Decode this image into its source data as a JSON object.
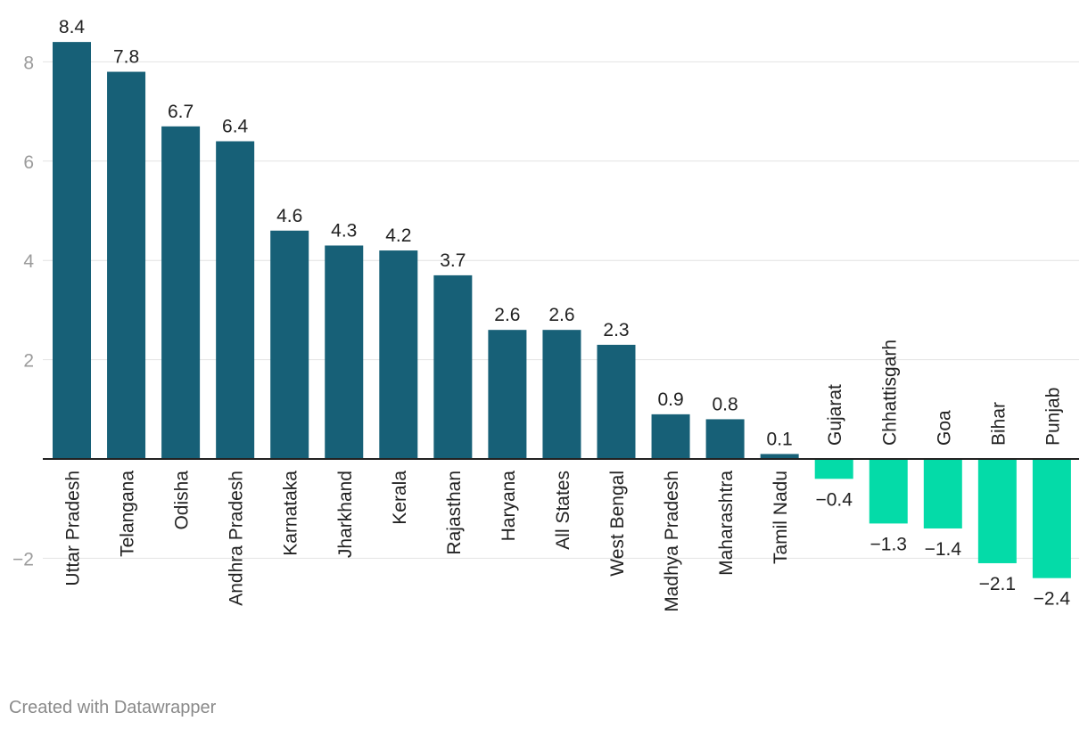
{
  "chart_data": {
    "type": "bar",
    "title": "",
    "xlabel": "",
    "ylabel": "",
    "ylim": [
      -3.2,
      8.4
    ],
    "yticks": [
      {
        "value": 8,
        "label": "8"
      },
      {
        "value": 6,
        "label": "6"
      },
      {
        "value": 4,
        "label": "4"
      },
      {
        "value": 2,
        "label": "2"
      },
      {
        "value": -2,
        "label": "−2"
      }
    ],
    "grid": true,
    "colors": {
      "positive": "#176077",
      "negative": "#04dba8"
    },
    "categories": [
      "Uttar Pradesh",
      "Telangana",
      "Odisha",
      "Andhra Pradesh",
      "Karnataka",
      "Jharkhand",
      "Kerala",
      "Rajasthan",
      "Haryana",
      "All States",
      "West Bengal",
      "Madhya Pradesh",
      "Maharashtra",
      "Tamil Nadu",
      "Gujarat",
      "Chhattisgarh",
      "Goa",
      "Bihar",
      "Punjab"
    ],
    "values": [
      8.4,
      7.8,
      6.7,
      6.4,
      4.6,
      4.3,
      4.2,
      3.7,
      2.6,
      2.6,
      2.3,
      0.9,
      0.8,
      0.1,
      -0.4,
      -1.3,
      -1.4,
      -2.1,
      -2.4
    ],
    "value_labels": [
      "8.4",
      "7.8",
      "6.7",
      "6.4",
      "4.6",
      "4.3",
      "4.2",
      "3.7",
      "2.6",
      "2.6",
      "2.3",
      "0.9",
      "0.8",
      "0.1",
      "−0.4",
      "−1.3",
      "−1.4",
      "−2.1",
      "−2.4"
    ]
  },
  "footer": {
    "credit": "Created with Datawrapper"
  }
}
